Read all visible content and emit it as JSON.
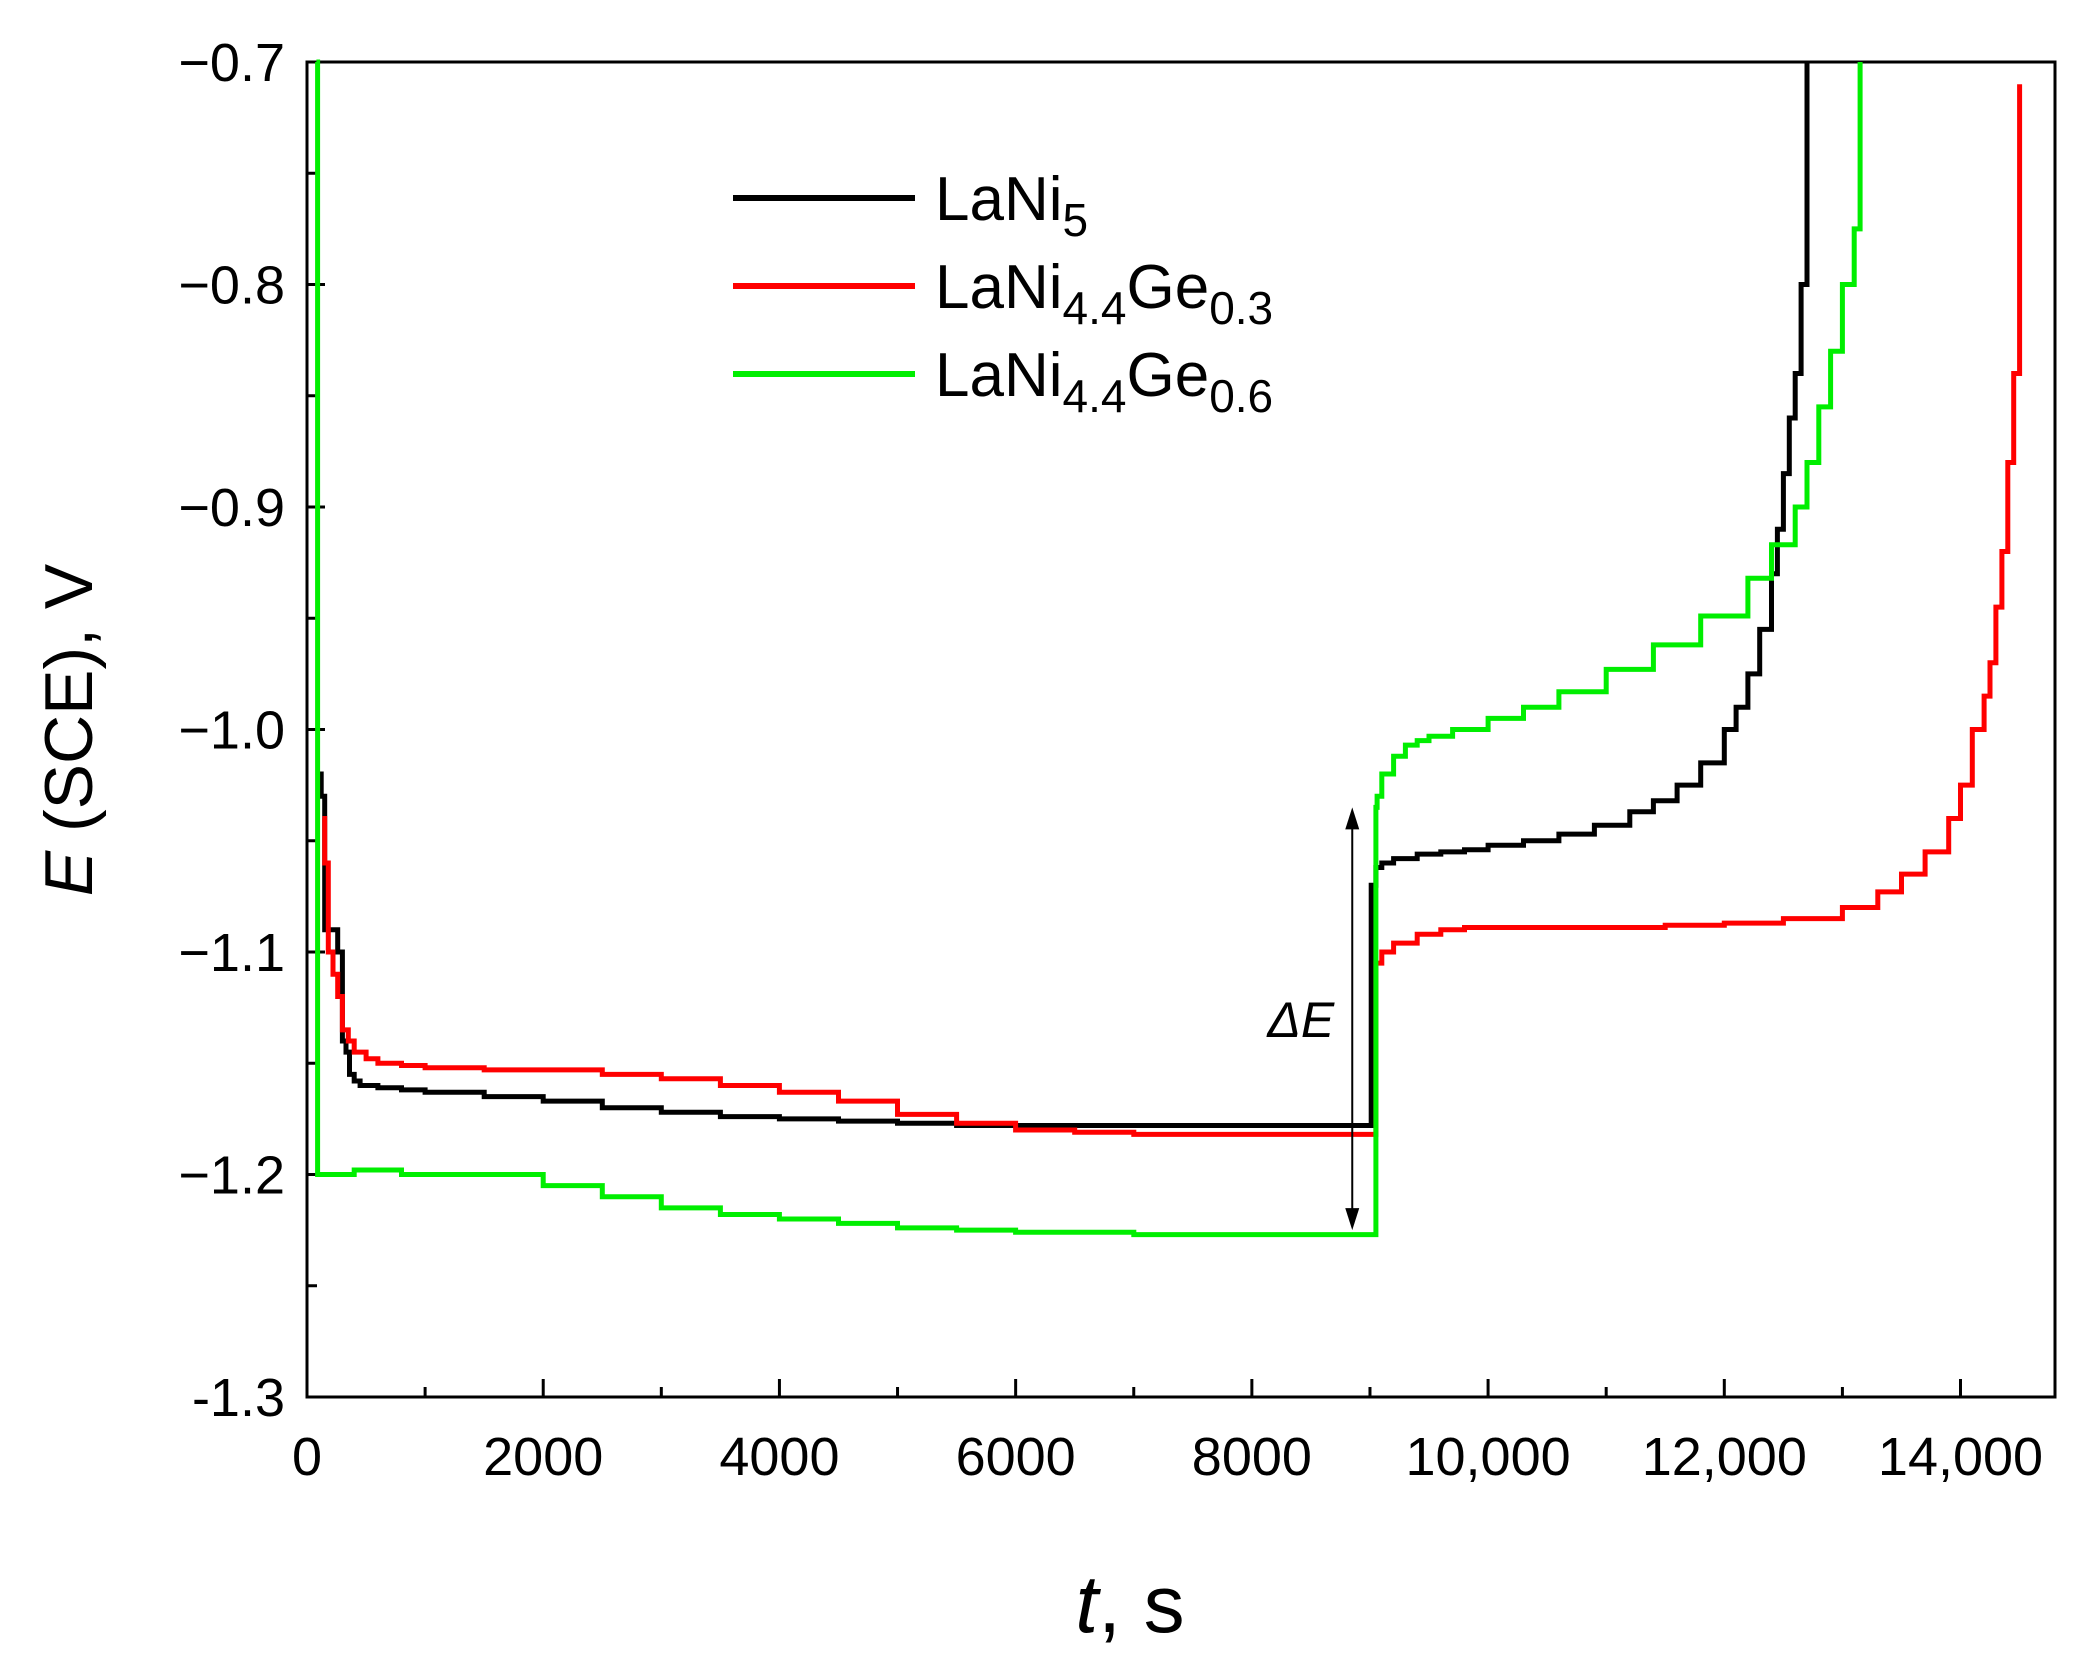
{
  "chart_data": {
    "type": "line",
    "xlabel": {
      "italic": "t",
      "rest": ", s"
    },
    "ylabel": {
      "italic": "E",
      "rest": " (SCE), V"
    },
    "xlim": [
      0,
      14800
    ],
    "ylim": [
      -1.3,
      -0.7
    ],
    "grid": false,
    "legend_position": "top-left",
    "x_ticks": [
      {
        "value": 0,
        "label": "0"
      },
      {
        "value": 2000,
        "label": "2000"
      },
      {
        "value": 4000,
        "label": "4000"
      },
      {
        "value": 6000,
        "label": "6000"
      },
      {
        "value": 8000,
        "label": "8000"
      },
      {
        "value": 10000,
        "label": "10,000"
      },
      {
        "value": 12000,
        "label": "12,000"
      },
      {
        "value": 14000,
        "label": "14,000"
      }
    ],
    "x_minor_ticks": [
      1000,
      3000,
      5000,
      7000,
      9000,
      11000,
      13000
    ],
    "y_ticks": [
      {
        "value": -0.7,
        "label": "−0.7"
      },
      {
        "value": -0.8,
        "label": "−0.8"
      },
      {
        "value": -0.9,
        "label": "−0.9"
      },
      {
        "value": -1.0,
        "label": "−1.0"
      },
      {
        "value": -1.1,
        "label": "−1.1"
      },
      {
        "value": -1.2,
        "label": "−1.2"
      },
      {
        "value": -1.3,
        "label": "-1.3"
      }
    ],
    "y_minor_ticks": [
      -0.75,
      -0.85,
      -0.95,
      -1.05,
      -1.15,
      -1.25
    ],
    "annotation": {
      "label": "ΔE",
      "x": 8850,
      "y_top": -1.035,
      "y_bottom": -1.225
    },
    "series": [
      {
        "name": "LaNi5",
        "legend_main": "LaNi",
        "legend_sub1": "5",
        "legend_mid": "",
        "legend_sub2": "",
        "color": "#000000",
        "x": [
          100,
          120,
          150,
          200,
          230,
          260,
          300,
          330,
          360,
          400,
          450,
          500,
          600,
          800,
          1000,
          1500,
          2000,
          2500,
          3000,
          3500,
          4000,
          4500,
          5000,
          5500,
          6000,
          6500,
          7000,
          7500,
          8000,
          8500,
          9000,
          9010,
          9050,
          9100,
          9200,
          9400,
          9600,
          9800,
          10000,
          10300,
          10600,
          10900,
          11200,
          11400,
          11600,
          11800,
          12000,
          12100,
          12200,
          12300,
          12400,
          12450,
          12500,
          12550,
          12600,
          12650,
          12700
        ],
        "y": [
          -1.02,
          -1.03,
          -1.09,
          -1.09,
          -1.09,
          -1.1,
          -1.14,
          -1.145,
          -1.155,
          -1.158,
          -1.16,
          -1.16,
          -1.161,
          -1.162,
          -1.163,
          -1.165,
          -1.167,
          -1.17,
          -1.172,
          -1.174,
          -1.175,
          -1.176,
          -1.177,
          -1.178,
          -1.178,
          -1.178,
          -1.178,
          -1.178,
          -1.178,
          -1.178,
          -1.178,
          -1.07,
          -1.062,
          -1.06,
          -1.058,
          -1.056,
          -1.055,
          -1.054,
          -1.052,
          -1.05,
          -1.047,
          -1.043,
          -1.037,
          -1.032,
          -1.025,
          -1.015,
          -1.0,
          -0.99,
          -0.975,
          -0.955,
          -0.93,
          -0.91,
          -0.885,
          -0.86,
          -0.84,
          -0.8,
          -0.7
        ]
      },
      {
        "name": "LaNi4.4Ge0.3",
        "legend_main": "LaNi",
        "legend_sub1": "4.4",
        "legend_mid": "Ge",
        "legend_sub2": "0.3",
        "color": "#ff0000",
        "x": [
          130,
          150,
          180,
          220,
          260,
          300,
          350,
          400,
          500,
          600,
          800,
          1000,
          1500,
          2000,
          2500,
          3000,
          3500,
          4000,
          4500,
          5000,
          5500,
          6000,
          6500,
          7000,
          7500,
          8000,
          8500,
          9000,
          9050,
          9100,
          9200,
          9400,
          9600,
          9800,
          10000,
          10500,
          11000,
          11500,
          12000,
          12500,
          13000,
          13300,
          13500,
          13700,
          13900,
          14000,
          14100,
          14200,
          14250,
          14300,
          14350,
          14400,
          14450,
          14500
        ],
        "y": [
          -1.04,
          -1.06,
          -1.1,
          -1.11,
          -1.12,
          -1.135,
          -1.14,
          -1.145,
          -1.148,
          -1.15,
          -1.151,
          -1.152,
          -1.153,
          -1.153,
          -1.155,
          -1.157,
          -1.16,
          -1.163,
          -1.167,
          -1.173,
          -1.177,
          -1.18,
          -1.181,
          -1.182,
          -1.182,
          -1.182,
          -1.182,
          -1.182,
          -1.105,
          -1.1,
          -1.096,
          -1.092,
          -1.09,
          -1.089,
          -1.089,
          -1.089,
          -1.089,
          -1.088,
          -1.087,
          -1.085,
          -1.08,
          -1.073,
          -1.065,
          -1.055,
          -1.04,
          -1.025,
          -1.0,
          -0.985,
          -0.97,
          -0.945,
          -0.92,
          -0.88,
          -0.84,
          -0.71
        ]
      },
      {
        "name": "LaNi4.4Ge0.6",
        "legend_main": "LaNi",
        "legend_sub1": "4.4",
        "legend_mid": "Ge",
        "legend_sub2": "0.6",
        "color": "#00ee00",
        "x": [
          80,
          90,
          100,
          150,
          200,
          400,
          800,
          1200,
          1600,
          2000,
          2500,
          3000,
          3500,
          4000,
          4500,
          5000,
          5500,
          6000,
          6500,
          7000,
          7500,
          8000,
          8500,
          9000,
          9050,
          9060,
          9100,
          9200,
          9300,
          9400,
          9500,
          9700,
          10000,
          10300,
          10600,
          11000,
          11400,
          11800,
          12200,
          12400,
          12600,
          12700,
          12800,
          12900,
          13000,
          13100,
          13150
        ],
        "y": [
          -0.7,
          -1.2,
          -1.2,
          -1.2,
          -1.2,
          -1.198,
          -1.2,
          -1.2,
          -1.2,
          -1.205,
          -1.21,
          -1.215,
          -1.218,
          -1.22,
          -1.222,
          -1.224,
          -1.225,
          -1.226,
          -1.226,
          -1.227,
          -1.227,
          -1.227,
          -1.227,
          -1.227,
          -1.035,
          -1.03,
          -1.02,
          -1.012,
          -1.007,
          -1.005,
          -1.003,
          -1.0,
          -0.995,
          -0.99,
          -0.983,
          -0.973,
          -0.962,
          -0.949,
          -0.932,
          -0.917,
          -0.9,
          -0.88,
          -0.855,
          -0.83,
          -0.8,
          -0.775,
          -0.7
        ]
      }
    ]
  }
}
